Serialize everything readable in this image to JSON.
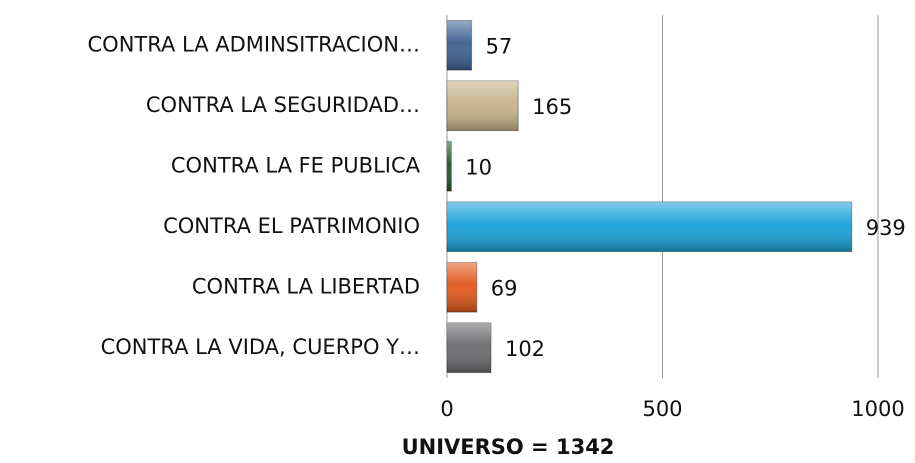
{
  "chart_data": {
    "type": "bar",
    "orientation": "horizontal",
    "categories": [
      "CONTRA LA ADMINSITRACION…",
      "CONTRA LA SEGURIDAD…",
      "CONTRA LA FE PUBLICA",
      "CONTRA EL PATRIMONIO",
      "CONTRA LA LIBERTAD",
      "CONTRA LA VIDA, CUERPO Y…"
    ],
    "values": [
      57,
      165,
      10,
      939,
      69,
      102
    ],
    "colors": [
      "#3d5f92",
      "#c6b189",
      "#1f5a2e",
      "#17a1d8",
      "#e2571a",
      "#6a6b6d"
    ],
    "xlim": [
      0,
      1000
    ],
    "xticks": [
      0,
      500,
      1000
    ],
    "grid": true,
    "xlabel": "UNIVERSO = 1342"
  }
}
